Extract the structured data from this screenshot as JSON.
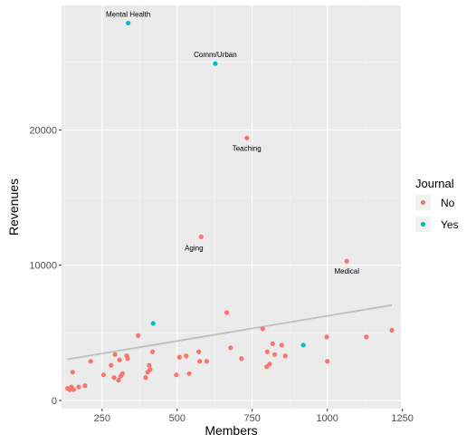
{
  "chart_data": {
    "type": "scatter",
    "title": "",
    "xlabel": "Members",
    "ylabel": "Revenues",
    "xlim": [
      115,
      1245
    ],
    "ylim": [
      -600,
      29200
    ],
    "x_ticks": [
      250,
      500,
      750,
      1000,
      1250
    ],
    "y_ticks": [
      0,
      10000,
      20000
    ],
    "x_tick_labels": [
      "250",
      "500",
      "750",
      "1000",
      "1250"
    ],
    "y_tick_labels": [
      "0",
      "10000",
      "20000"
    ],
    "grid": true,
    "legend": {
      "title": "Journal",
      "placement": "right",
      "entries": [
        {
          "label": "No",
          "color": "#F8766D"
        },
        {
          "label": "Yes",
          "color": "#00BFC4"
        }
      ]
    },
    "series": [
      {
        "name": "No",
        "color": "#F8766D",
        "points": [
          [
            135,
            900
          ],
          [
            142,
            800
          ],
          [
            148,
            1000
          ],
          [
            152,
            2100
          ],
          [
            155,
            800
          ],
          [
            172,
            1000
          ],
          [
            193,
            1100
          ],
          [
            212,
            2900
          ],
          [
            255,
            1900
          ],
          [
            280,
            2600
          ],
          [
            290,
            1700
          ],
          [
            293,
            3400
          ],
          [
            305,
            1500
          ],
          [
            308,
            3000
          ],
          [
            312,
            1800
          ],
          [
            318,
            2000
          ],
          [
            332,
            3300
          ],
          [
            335,
            3100
          ],
          [
            370,
            4800
          ],
          [
            395,
            1700
          ],
          [
            402,
            2100
          ],
          [
            407,
            2600
          ],
          [
            410,
            2300
          ],
          [
            418,
            3600
          ],
          [
            497,
            1900
          ],
          [
            508,
            3200
          ],
          [
            530,
            3300
          ],
          [
            540,
            2000
          ],
          [
            572,
            3600
          ],
          [
            575,
            2900
          ],
          [
            580,
            12100
          ],
          [
            598,
            2900
          ],
          [
            665,
            6500
          ],
          [
            678,
            3900
          ],
          [
            714,
            3100
          ],
          [
            732,
            19400
          ],
          [
            785,
            5300
          ],
          [
            798,
            2500
          ],
          [
            800,
            3600
          ],
          [
            808,
            2700
          ],
          [
            818,
            4200
          ],
          [
            825,
            3400
          ],
          [
            848,
            4100
          ],
          [
            860,
            3300
          ],
          [
            998,
            4700
          ],
          [
            1000,
            2900
          ],
          [
            1065,
            10300
          ],
          [
            1130,
            4700
          ],
          [
            1215,
            5200
          ]
        ]
      },
      {
        "name": "Yes",
        "color": "#00BFC4",
        "points": [
          [
            337,
            27900
          ],
          [
            420,
            5700
          ],
          [
            627,
            24900
          ],
          [
            920,
            4100
          ]
        ]
      }
    ],
    "trendline": {
      "color": "#BEBEBE",
      "x": [
        135,
        1215
      ],
      "y": [
        3050,
        7050
      ]
    },
    "annotations": [
      {
        "text": "Mental Health",
        "x": 337,
        "y": 27900,
        "anchor": "above"
      },
      {
        "text": "Comm/Urban",
        "x": 627,
        "y": 24900,
        "anchor": "above"
      },
      {
        "text": "Teaching",
        "x": 732,
        "y": 19400,
        "anchor": "below"
      },
      {
        "text": "Aging",
        "x": 580,
        "y": 12100,
        "anchor": "below-left"
      },
      {
        "text": "Medical",
        "x": 1065,
        "y": 10300,
        "anchor": "below"
      }
    ],
    "colors": {
      "panel_background": "#EBEBEB",
      "grid_major": "#FFFFFF",
      "grid_minor": "#F5F5F5"
    }
  }
}
